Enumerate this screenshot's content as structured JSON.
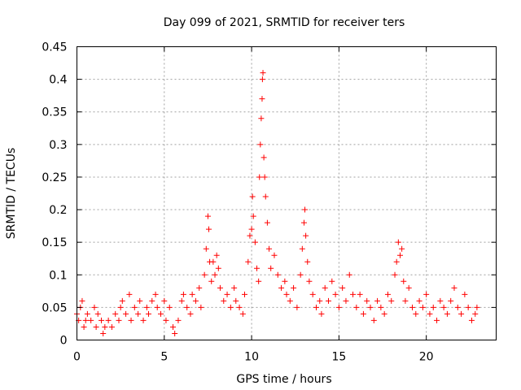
{
  "chart_data": {
    "type": "scatter",
    "title": "Day 099 of 2021, SRMTID for receiver ters",
    "xlabel": "GPS time / hours",
    "ylabel": "SRMTID / TECUs",
    "xlim": [
      0,
      24
    ],
    "ylim": [
      0,
      0.45
    ],
    "x_ticks": [
      0,
      5,
      10,
      15,
      20
    ],
    "x_tick_labels": [
      "0",
      "5",
      "10",
      "15",
      "20"
    ],
    "y_ticks": [
      0,
      0.05,
      0.1,
      0.15,
      0.2,
      0.25,
      0.3,
      0.35,
      0.4,
      0.45
    ],
    "y_tick_labels": [
      "0",
      "0.05",
      "0.1",
      "0.15",
      "0.2",
      "0.25",
      "0.3",
      "0.35",
      "0.4",
      "0.45"
    ],
    "grid": true,
    "marker": "+",
    "color": "#ff0000",
    "series": [
      {
        "name": "SRMTID",
        "points": [
          [
            0.0,
            0.04
          ],
          [
            0.1,
            0.03
          ],
          [
            0.2,
            0.05
          ],
          [
            0.3,
            0.06
          ],
          [
            0.4,
            0.02
          ],
          [
            0.5,
            0.03
          ],
          [
            0.6,
            0.04
          ],
          [
            0.8,
            0.03
          ],
          [
            1.0,
            0.05
          ],
          [
            1.1,
            0.02
          ],
          [
            1.2,
            0.04
          ],
          [
            1.4,
            0.03
          ],
          [
            1.5,
            0.01
          ],
          [
            1.6,
            0.02
          ],
          [
            1.8,
            0.03
          ],
          [
            2.0,
            0.02
          ],
          [
            2.2,
            0.04
          ],
          [
            2.4,
            0.03
          ],
          [
            2.5,
            0.05
          ],
          [
            2.6,
            0.06
          ],
          [
            2.8,
            0.04
          ],
          [
            3.0,
            0.07
          ],
          [
            3.1,
            0.03
          ],
          [
            3.3,
            0.05
          ],
          [
            3.5,
            0.04
          ],
          [
            3.6,
            0.06
          ],
          [
            3.8,
            0.03
          ],
          [
            4.0,
            0.05
          ],
          [
            4.1,
            0.04
          ],
          [
            4.3,
            0.06
          ],
          [
            4.5,
            0.07
          ],
          [
            4.6,
            0.05
          ],
          [
            4.8,
            0.04
          ],
          [
            5.0,
            0.06
          ],
          [
            5.1,
            0.03
          ],
          [
            5.3,
            0.05
          ],
          [
            5.5,
            0.02
          ],
          [
            5.6,
            0.01
          ],
          [
            5.8,
            0.03
          ],
          [
            6.0,
            0.06
          ],
          [
            6.1,
            0.07
          ],
          [
            6.3,
            0.05
          ],
          [
            6.5,
            0.04
          ],
          [
            6.6,
            0.07
          ],
          [
            6.8,
            0.06
          ],
          [
            7.0,
            0.08
          ],
          [
            7.1,
            0.05
          ],
          [
            7.3,
            0.1
          ],
          [
            7.4,
            0.14
          ],
          [
            7.5,
            0.19
          ],
          [
            7.55,
            0.17
          ],
          [
            7.6,
            0.12
          ],
          [
            7.7,
            0.09
          ],
          [
            7.8,
            0.12
          ],
          [
            7.9,
            0.1
          ],
          [
            8.0,
            0.13
          ],
          [
            8.1,
            0.11
          ],
          [
            8.2,
            0.08
          ],
          [
            8.4,
            0.06
          ],
          [
            8.6,
            0.07
          ],
          [
            8.8,
            0.05
          ],
          [
            9.0,
            0.08
          ],
          [
            9.1,
            0.06
          ],
          [
            9.3,
            0.05
          ],
          [
            9.5,
            0.04
          ],
          [
            9.6,
            0.07
          ],
          [
            9.8,
            0.12
          ],
          [
            9.9,
            0.16
          ],
          [
            10.0,
            0.17
          ],
          [
            10.05,
            0.22
          ],
          [
            10.1,
            0.19
          ],
          [
            10.2,
            0.15
          ],
          [
            10.3,
            0.11
          ],
          [
            10.4,
            0.09
          ],
          [
            10.45,
            0.25
          ],
          [
            10.5,
            0.3
          ],
          [
            10.55,
            0.34
          ],
          [
            10.6,
            0.37
          ],
          [
            10.62,
            0.4
          ],
          [
            10.65,
            0.41
          ],
          [
            10.7,
            0.28
          ],
          [
            10.75,
            0.25
          ],
          [
            10.8,
            0.22
          ],
          [
            10.9,
            0.18
          ],
          [
            11.0,
            0.14
          ],
          [
            11.1,
            0.11
          ],
          [
            11.3,
            0.13
          ],
          [
            11.5,
            0.1
          ],
          [
            11.7,
            0.08
          ],
          [
            11.9,
            0.09
          ],
          [
            12.0,
            0.07
          ],
          [
            12.2,
            0.06
          ],
          [
            12.4,
            0.08
          ],
          [
            12.6,
            0.05
          ],
          [
            12.8,
            0.1
          ],
          [
            12.9,
            0.14
          ],
          [
            13.0,
            0.18
          ],
          [
            13.05,
            0.2
          ],
          [
            13.1,
            0.16
          ],
          [
            13.2,
            0.12
          ],
          [
            13.3,
            0.09
          ],
          [
            13.5,
            0.07
          ],
          [
            13.7,
            0.05
          ],
          [
            13.9,
            0.06
          ],
          [
            14.0,
            0.04
          ],
          [
            14.2,
            0.08
          ],
          [
            14.4,
            0.06
          ],
          [
            14.6,
            0.09
          ],
          [
            14.8,
            0.07
          ],
          [
            15.0,
            0.05
          ],
          [
            15.2,
            0.08
          ],
          [
            15.4,
            0.06
          ],
          [
            15.6,
            0.1
          ],
          [
            15.8,
            0.07
          ],
          [
            16.0,
            0.05
          ],
          [
            16.2,
            0.07
          ],
          [
            16.4,
            0.04
          ],
          [
            16.6,
            0.06
          ],
          [
            16.8,
            0.05
          ],
          [
            17.0,
            0.03
          ],
          [
            17.2,
            0.06
          ],
          [
            17.4,
            0.05
          ],
          [
            17.6,
            0.04
          ],
          [
            17.8,
            0.07
          ],
          [
            18.0,
            0.06
          ],
          [
            18.2,
            0.1
          ],
          [
            18.3,
            0.12
          ],
          [
            18.4,
            0.15
          ],
          [
            18.5,
            0.13
          ],
          [
            18.6,
            0.14
          ],
          [
            18.7,
            0.09
          ],
          [
            18.8,
            0.06
          ],
          [
            19.0,
            0.08
          ],
          [
            19.2,
            0.05
          ],
          [
            19.4,
            0.04
          ],
          [
            19.6,
            0.06
          ],
          [
            19.8,
            0.05
          ],
          [
            20.0,
            0.07
          ],
          [
            20.2,
            0.04
          ],
          [
            20.4,
            0.05
          ],
          [
            20.6,
            0.03
          ],
          [
            20.8,
            0.06
          ],
          [
            21.0,
            0.05
          ],
          [
            21.2,
            0.04
          ],
          [
            21.4,
            0.06
          ],
          [
            21.6,
            0.08
          ],
          [
            21.8,
            0.05
          ],
          [
            22.0,
            0.04
          ],
          [
            22.2,
            0.07
          ],
          [
            22.4,
            0.05
          ],
          [
            22.6,
            0.03
          ],
          [
            22.8,
            0.04
          ],
          [
            22.9,
            0.05
          ]
        ]
      }
    ]
  }
}
